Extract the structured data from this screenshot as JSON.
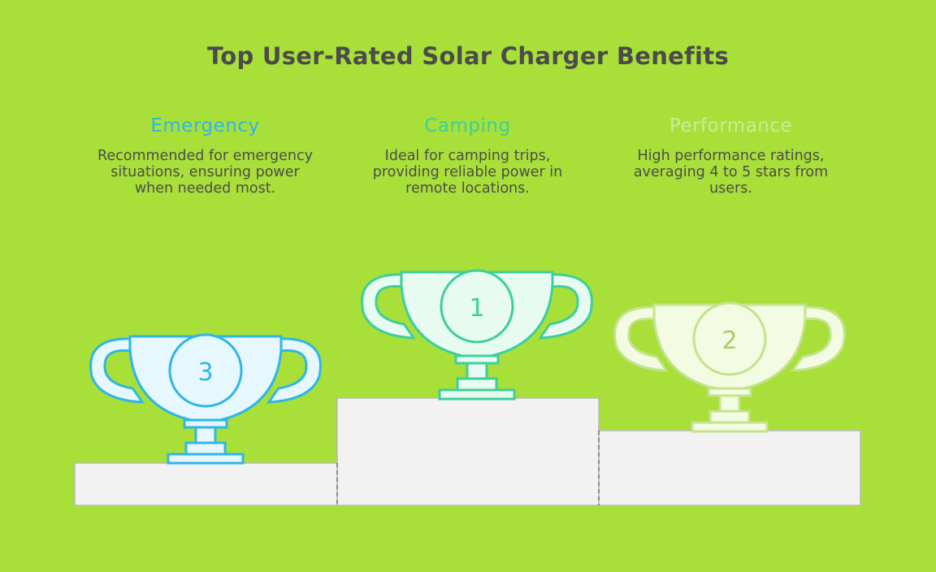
{
  "title": "Top User-Rated Solar Charger Benefits",
  "columns": [
    {
      "heading": "Emergency",
      "description": "Recommended for emergency situations, ensuring power when needed most.",
      "rank": "3",
      "heading_color": "#2fb6e6"
    },
    {
      "heading": "Camping",
      "description": "Ideal for camping trips, providing reliable power in remote locations.",
      "rank": "1",
      "heading_color": "#3ccf9c"
    },
    {
      "heading": "Performance",
      "description": "High performance ratings, averaging 4 to 5 stars from users.",
      "rank": "2",
      "heading_color": "#c9ec9a"
    }
  ],
  "colors": {
    "background": "#a8df38",
    "podium": "#f2f2f2",
    "trophy_emergency_stroke": "#2fb6e6",
    "trophy_emergency_fill": "#e6f7fe",
    "trophy_camping_stroke": "#3ccf9c",
    "trophy_camping_fill": "#e8fbf3",
    "trophy_performance_stroke": "#c3e38c",
    "trophy_performance_fill": "#f3fbe2"
  }
}
